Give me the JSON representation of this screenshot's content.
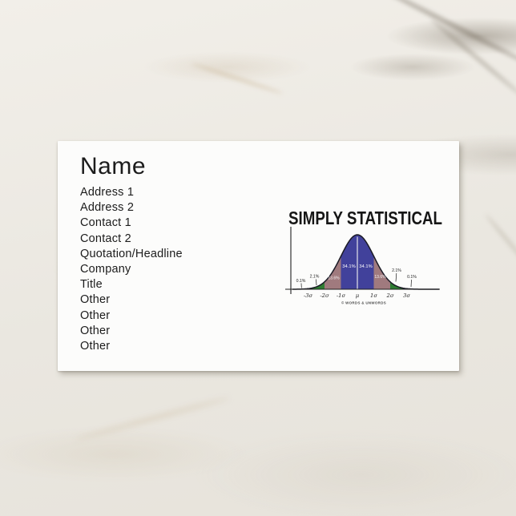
{
  "card": {
    "name": "Name",
    "fields": [
      "Address 1",
      "Address 2",
      "Contact 1",
      "Contact 2",
      "Quotation/Headline",
      "Company",
      "Title",
      "Other",
      "Other",
      "Other",
      "Other"
    ]
  },
  "chart_data": {
    "type": "area",
    "title": "SIMPLY STATISTICAL",
    "distribution": "normal bell curve (empirical rule)",
    "x_tick_labels": [
      "-3σ",
      "-2σ",
      "-1σ",
      "μ",
      "1σ",
      "2σ",
      "3σ"
    ],
    "regions": [
      {
        "from": "-∞",
        "to": "-3σ",
        "label": "0.1%",
        "color": "#1a1a24"
      },
      {
        "from": "-3σ",
        "to": "-2σ",
        "label": "2.1%",
        "color": "#2e7d32"
      },
      {
        "from": "-2σ",
        "to": "-1σ",
        "label": "13.6%",
        "color": "#a07a7e"
      },
      {
        "from": "-1σ",
        "to": "μ",
        "label": "34.1%",
        "color": "#41419b"
      },
      {
        "from": "μ",
        "to": "1σ",
        "label": "34.1%",
        "color": "#41419b"
      },
      {
        "from": "1σ",
        "to": "2σ",
        "label": "13.6%",
        "color": "#a07a7e"
      },
      {
        "from": "2σ",
        "to": "3σ",
        "label": "2.1%",
        "color": "#2e7d32"
      },
      {
        "from": "3σ",
        "to": "+∞",
        "label": "0.1%",
        "color": "#1a1a24"
      }
    ],
    "axis": {
      "grid": false,
      "x_axis_shown": true,
      "y_axis_shown": true
    },
    "credit": "© WORDS & UNWORDS"
  }
}
